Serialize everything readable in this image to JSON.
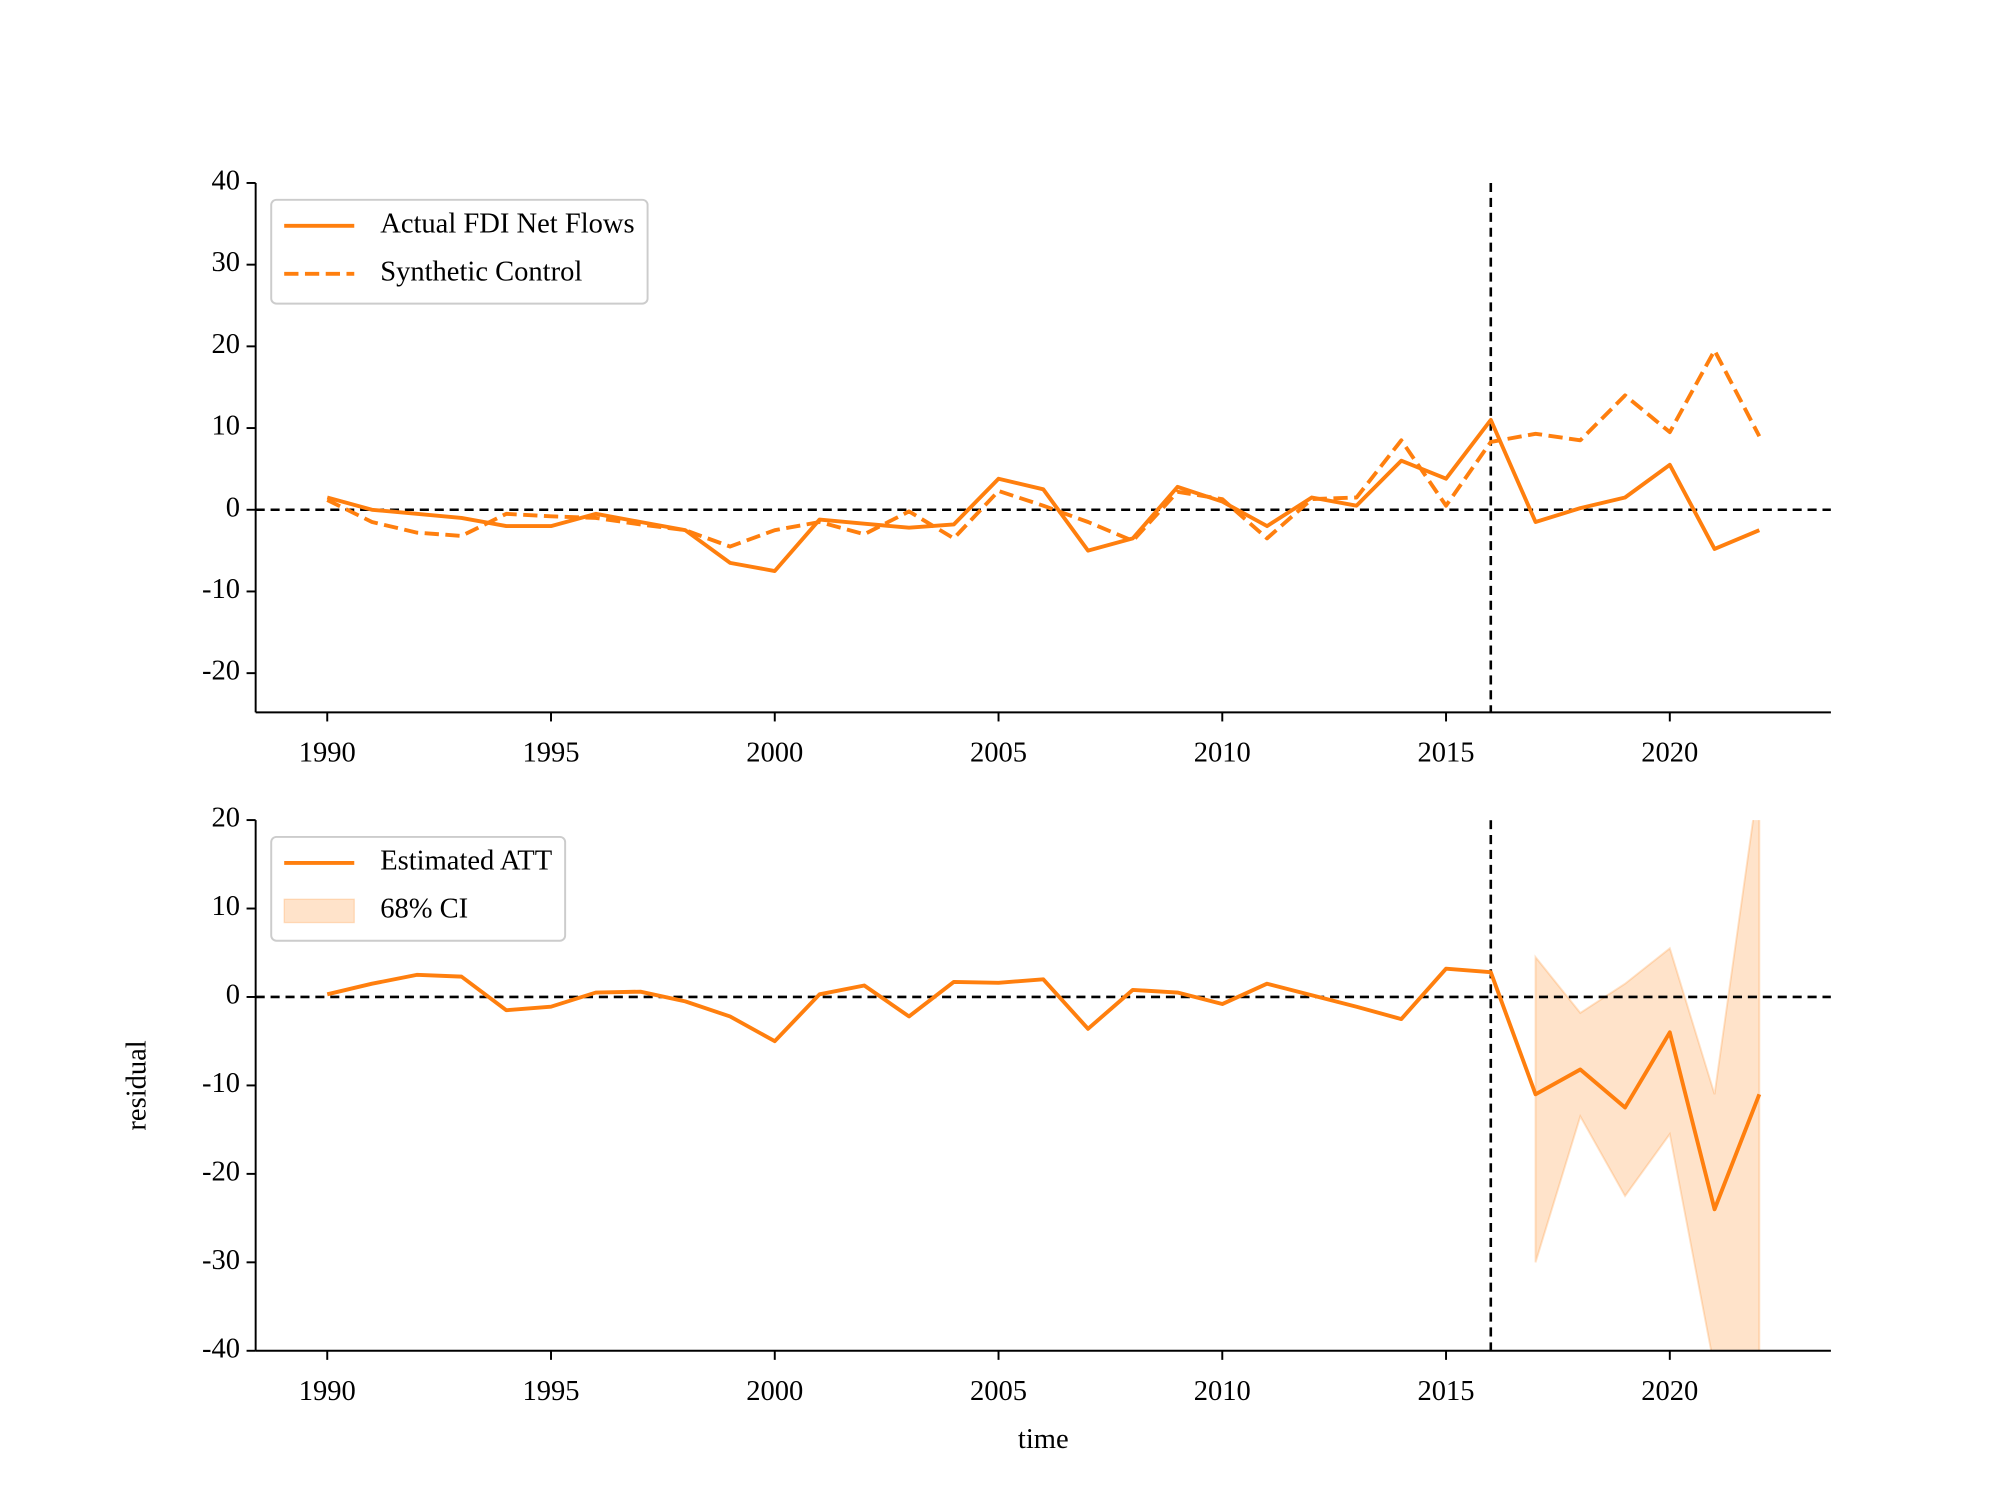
{
  "chart_data": [
    {
      "type": "line",
      "x": [
        1990,
        1991,
        1992,
        1993,
        1994,
        1995,
        1996,
        1997,
        1998,
        1999,
        2000,
        2001,
        2002,
        2003,
        2004,
        2005,
        2006,
        2007,
        2008,
        2009,
        2010,
        2011,
        2012,
        2013,
        2014,
        2015,
        2016,
        2017,
        2018,
        2019,
        2020,
        2021,
        2022
      ],
      "series": [
        {
          "name": "Actual FDI Net Flows",
          "color": "#ff7f0e",
          "dash": false,
          "values": [
            1.5,
            0,
            -0.5,
            -1,
            -2,
            -2,
            -0.5,
            -1.5,
            -2.5,
            -6.5,
            -7.5,
            -1.2,
            -1.7,
            -2.2,
            -1.8,
            3.8,
            2.5,
            -5,
            -3.5,
            2.8,
            1,
            -2,
            1.5,
            0.5,
            6,
            3.8,
            11,
            -1.5,
            0.2,
            1.5,
            5.5,
            -4.8,
            -2.5
          ]
        },
        {
          "name": "Synthetic Control",
          "color": "#ff7f0e",
          "dash": true,
          "values": [
            1.2,
            -1.5,
            -2.8,
            -3.2,
            -0.5,
            -0.8,
            -1,
            -1.8,
            -2.5,
            -4.5,
            -2.5,
            -1.5,
            -3,
            -0.2,
            -3.5,
            2.3,
            0.5,
            -1.5,
            -3.8,
            2.2,
            1.3,
            -3.5,
            1.3,
            1.5,
            8.5,
            0.5,
            8.3,
            9.3,
            8.5,
            14,
            9.5,
            19.5,
            9
          ]
        }
      ],
      "hline": 0,
      "vline": 2016,
      "xlim": [
        1988.4,
        2023.6
      ],
      "ylim": [
        -24.8,
        40
      ],
      "xticks": [
        1990,
        1995,
        2000,
        2005,
        2010,
        2015,
        2020
      ],
      "yticks": [
        -20,
        -10,
        0,
        10,
        20,
        30,
        40
      ],
      "legend": "upper left"
    },
    {
      "type": "line",
      "x": [
        1990,
        1991,
        1992,
        1993,
        1994,
        1995,
        1996,
        1997,
        1998,
        1999,
        2000,
        2001,
        2002,
        2003,
        2004,
        2005,
        2006,
        2007,
        2008,
        2009,
        2010,
        2011,
        2012,
        2013,
        2014,
        2015,
        2016,
        2017,
        2018,
        2019,
        2020,
        2021,
        2022
      ],
      "series": [
        {
          "name": "Estimated ATT",
          "color": "#ff7f0e",
          "dash": false,
          "values": [
            0.3,
            1.5,
            2.5,
            2.3,
            -1.5,
            -1.1,
            0.5,
            0.6,
            -0.5,
            -2.2,
            -5,
            0.3,
            1.3,
            -2.2,
            1.7,
            1.6,
            2,
            -3.6,
            0.8,
            0.5,
            -0.8,
            1.5,
            0.2,
            -1.1,
            -2.5,
            3.2,
            2.8,
            -11,
            -8.2,
            -12.5,
            -4,
            -24,
            -11
          ]
        }
      ],
      "band": {
        "name": "68% CI",
        "color": "#ff7f0e",
        "x": [
          2017,
          2018,
          2019,
          2020,
          2021,
          2022
        ],
        "lower": [
          -30,
          -13.5,
          -22.5,
          -15.5,
          -42,
          -42
        ],
        "upper": [
          4.5,
          -1.8,
          1.5,
          5.5,
          -11,
          25
        ]
      },
      "hline": 0,
      "vline": 2016,
      "xlim": [
        1988.4,
        2023.6
      ],
      "ylim": [
        -40,
        20
      ],
      "xticks": [
        1990,
        1995,
        2000,
        2005,
        2010,
        2015,
        2020
      ],
      "yticks": [
        -40,
        -30,
        -20,
        -10,
        0,
        10,
        20
      ],
      "xlabel": "time",
      "ylabel": "residual",
      "legend": "upper left"
    }
  ]
}
